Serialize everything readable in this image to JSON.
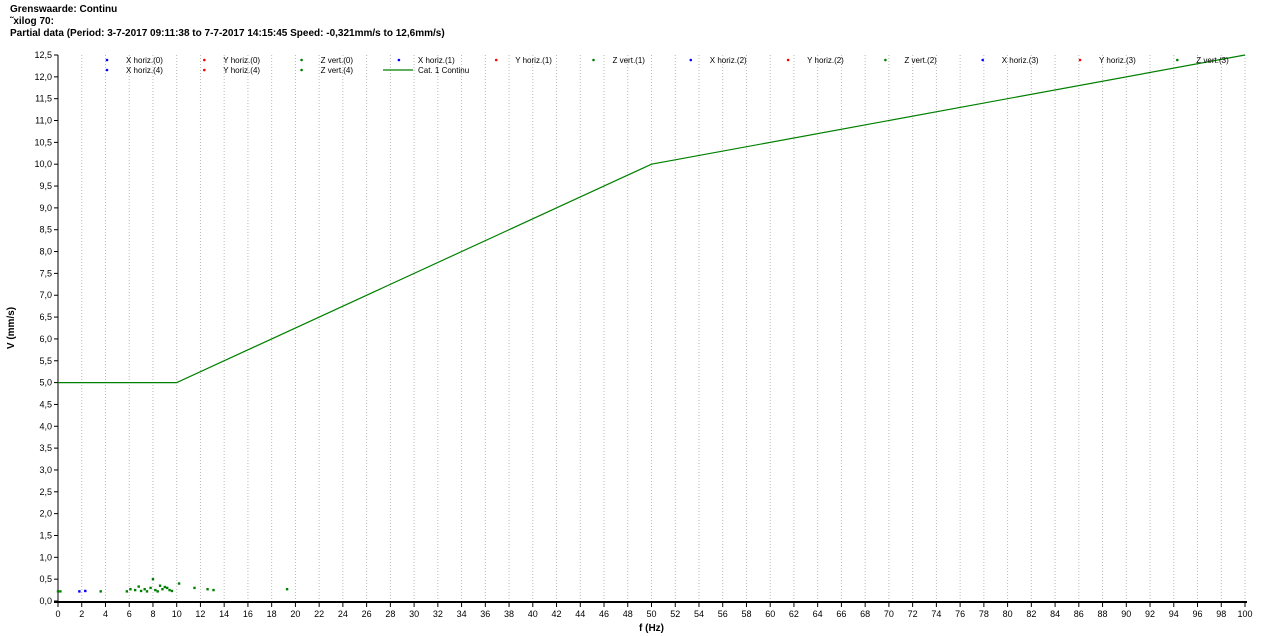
{
  "header": {
    "line1": "Grenswaarde: Continu",
    "line2": "˜xilog 70:",
    "line3": "Partial data (Period: 3-7-2017 09:11:38 to 7-7-2017 14:15:45 Speed: -0,321mm/s to 12,6mm/s)"
  },
  "chart_data": {
    "type": "scatter",
    "xlabel": "f (Hz)",
    "ylabel": "V (mm/s)",
    "xlim": [
      0,
      100
    ],
    "ylim": [
      0,
      12.5
    ],
    "x_ticks": [
      0,
      2,
      4,
      6,
      8,
      10,
      12,
      14,
      16,
      18,
      20,
      22,
      24,
      26,
      28,
      30,
      32,
      34,
      36,
      38,
      40,
      42,
      44,
      46,
      48,
      50,
      52,
      54,
      56,
      58,
      60,
      62,
      64,
      66,
      68,
      70,
      72,
      74,
      76,
      78,
      80,
      82,
      84,
      86,
      88,
      90,
      92,
      94,
      96,
      98,
      100
    ],
    "y_ticks": [
      "0,0",
      "0,5",
      "1,0",
      "1,5",
      "2,0",
      "2,5",
      "3,0",
      "3,5",
      "4,0",
      "4,5",
      "5,0",
      "5,5",
      "6,0",
      "6,5",
      "7,0",
      "7,5",
      "8,0",
      "8,5",
      "9,0",
      "9,5",
      "10,0",
      "10,5",
      "11,0",
      "11,5",
      "12,0",
      "12,5"
    ],
    "grid": "vertical dotted",
    "legend_position": "top",
    "colors": {
      "x": "#0000ff",
      "y": "#ff0000",
      "z": "#008000",
      "limit": "#008000"
    },
    "legend_rows": [
      [
        "X horiz.(0)",
        "Y horiz.(0)",
        "Z vert.(0)",
        "X horiz.(1)",
        "Y horiz.(1)",
        "Z vert.(1)",
        "X horiz.(2)",
        "Y horiz.(2)",
        "Z vert.(2)",
        "X horiz.(3)",
        "Y horiz.(3)",
        "Z vert.(3)"
      ],
      [
        "X horiz.(4)",
        "Y horiz.(4)",
        "Z vert.(4)",
        "Cat. 1 Continu"
      ]
    ],
    "series": [
      {
        "name": "Cat. 1 Continu",
        "kind": "line",
        "x": [
          0,
          10,
          50,
          100
        ],
        "y": [
          5.0,
          5.0,
          10.0,
          12.5
        ]
      },
      {
        "name": "X horiz.",
        "kind": "points",
        "color": "#0000ff",
        "points": [
          [
            1.8,
            0.22
          ],
          [
            2.3,
            0.23
          ]
        ]
      },
      {
        "name": "Z vert.",
        "kind": "points",
        "color": "#008000",
        "points": [
          [
            0,
            0.22
          ],
          [
            0.2,
            0.22
          ],
          [
            3.6,
            0.22
          ],
          [
            5.8,
            0.22
          ],
          [
            6.1,
            0.27
          ],
          [
            6.5,
            0.25
          ],
          [
            6.8,
            0.33
          ],
          [
            7.0,
            0.23
          ],
          [
            7.3,
            0.27
          ],
          [
            7.5,
            0.22
          ],
          [
            7.8,
            0.3
          ],
          [
            8.0,
            0.5
          ],
          [
            8.2,
            0.25
          ],
          [
            8.4,
            0.22
          ],
          [
            8.6,
            0.35
          ],
          [
            8.8,
            0.27
          ],
          [
            9.0,
            0.32
          ],
          [
            9.2,
            0.3
          ],
          [
            9.4,
            0.25
          ],
          [
            9.6,
            0.23
          ],
          [
            10.2,
            0.4
          ],
          [
            11.5,
            0.3
          ],
          [
            12.6,
            0.27
          ],
          [
            13.1,
            0.25
          ],
          [
            19.3,
            0.27
          ]
        ]
      }
    ]
  }
}
